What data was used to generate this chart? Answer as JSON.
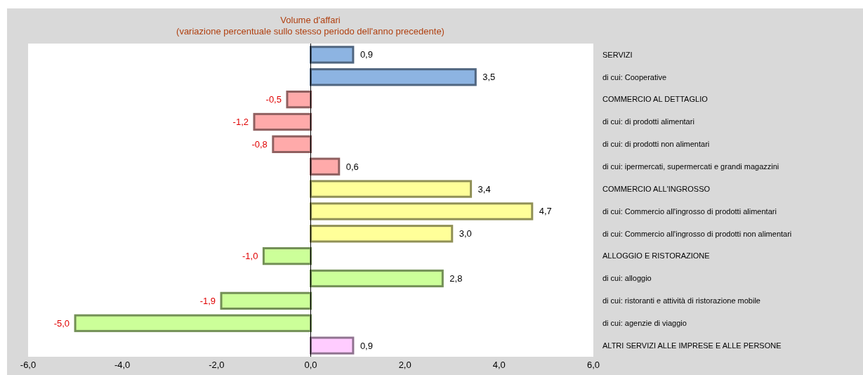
{
  "chart_data": {
    "type": "bar",
    "orientation": "horizontal",
    "title": "Volume d'affari",
    "subtitle": "(variazione percentuale sullo stesso periodo dell'anno precedente)",
    "categories": [
      "SERVIZI",
      "di cui: Cooperative",
      "COMMERCIO AL DETTAGLIO",
      "di cui: di prodotti alimentari",
      "di cui: di prodotti non alimentari",
      "di cui: ipermercati, supermercati e grandi magazzini",
      "COMMERCIO ALL'INGROSSO",
      "di cui: Commercio all'ingrosso di prodotti alimentari",
      "di cui: Commercio all'ingrosso di prodotti non alimentari",
      "ALLOGGIO E RISTORAZIONE",
      "di cui: alloggio",
      "di cui: ristoranti e attività di ristorazione mobile",
      "di cui: agenzie di viaggio",
      "ALTRI SERVIZI ALLE IMPRESE E ALLE PERSONE"
    ],
    "values": [
      0.9,
      3.5,
      -0.5,
      -1.2,
      -0.8,
      0.6,
      3.4,
      4.7,
      3.0,
      -1.0,
      2.8,
      -1.9,
      -5.0,
      0.9
    ],
    "value_labels": [
      "0,9",
      "3,5",
      "-0,5",
      "-1,2",
      "-0,8",
      "0,6",
      "3,4",
      "4,7",
      "3,0",
      "-1,0",
      "2,8",
      "-1,9",
      "-5,0",
      "0,9"
    ],
    "colors": [
      "#8db4e2",
      "#8db4e2",
      "#ffaaaa",
      "#ffaaaa",
      "#ffaaaa",
      "#ffaaaa",
      "#ffff99",
      "#ffff99",
      "#ffff99",
      "#ccff99",
      "#ccff99",
      "#ccff99",
      "#ccff99",
      "#ffccff"
    ],
    "xlim": [
      -6,
      6
    ],
    "xticks": [
      {
        "value": -6,
        "label": "-6,0"
      },
      {
        "value": -4,
        "label": "-4,0"
      },
      {
        "value": -2,
        "label": "-2,0"
      },
      {
        "value": 0,
        "label": "0,0"
      },
      {
        "value": 2,
        "label": "2,0"
      },
      {
        "value": 4,
        "label": "4,0"
      },
      {
        "value": 6,
        "label": "6,0"
      }
    ]
  }
}
